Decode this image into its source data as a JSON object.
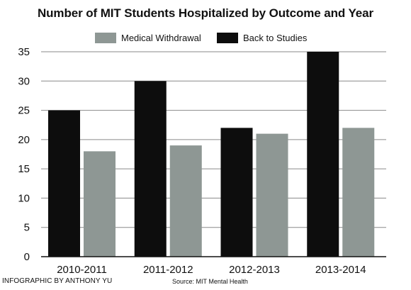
{
  "chart_data": {
    "type": "bar",
    "title": "Number of MIT Students Hospitalized by Outcome and Year",
    "categories": [
      "2010-2011",
      "2011-2012",
      "2012-2013",
      "2013-2014"
    ],
    "series": [
      {
        "name": "Back to Studies",
        "values": [
          25,
          30,
          22,
          35
        ],
        "color": "#0d0d0d"
      },
      {
        "name": "Medical Withdrawal",
        "values": [
          18,
          19,
          21,
          22
        ],
        "color": "#8e9794"
      }
    ],
    "legend": [
      {
        "name": "Medical Withdrawal",
        "color": "#8e9794"
      },
      {
        "name": "Back to Studies",
        "color": "#0d0d0d"
      }
    ],
    "yticks": [
      "0",
      "5",
      "10",
      "15",
      "20",
      "25",
      "30",
      "35"
    ],
    "ylim": [
      0,
      35
    ],
    "xlabel": "",
    "ylabel": "",
    "grid": true,
    "legend_position": "top-center"
  },
  "credit": "INFOGRAPHIC BY ANTHONY YU",
  "source": "Source: MIT Mental Health"
}
